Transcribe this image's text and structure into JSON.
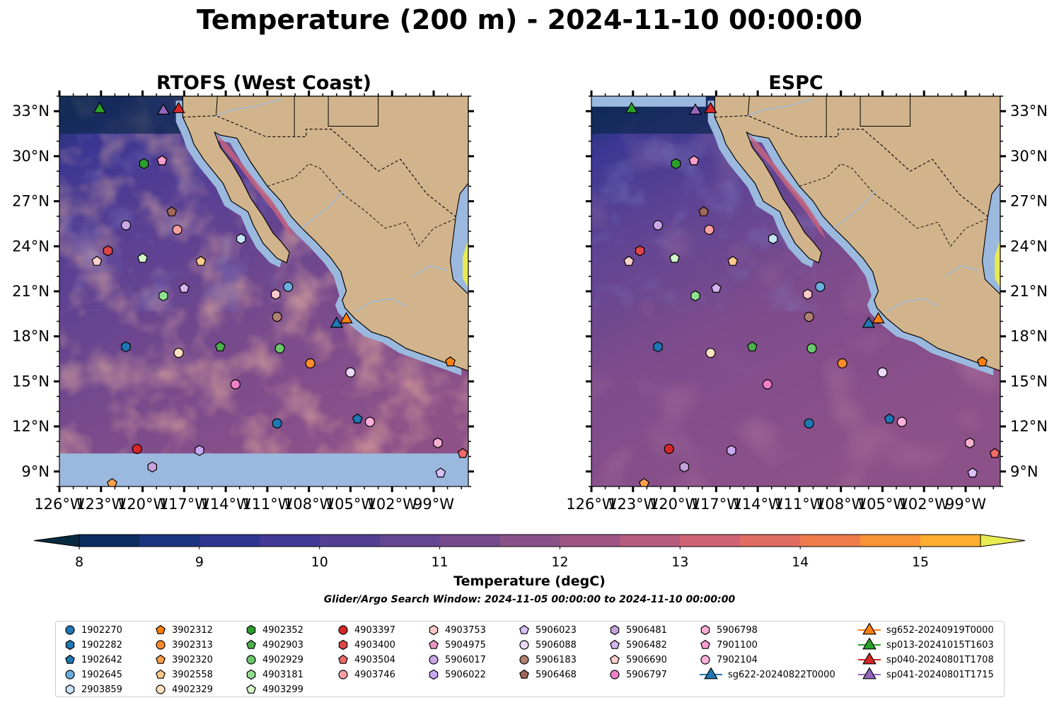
{
  "suptitle": "Temperature (200 m) - 2024-11-10 00:00:00",
  "panels": [
    {
      "title": "RTOFS (West Coast)",
      "model": "rtofs"
    },
    {
      "title": "ESPC",
      "model": "espc"
    }
  ],
  "axes": {
    "lon_range": [
      -126,
      -96.5
    ],
    "lat_range": [
      8,
      34
    ],
    "lon_ticks": [
      "126°W",
      "123°W",
      "120°W",
      "117°W",
      "114°W",
      "111°W",
      "108°W",
      "105°W",
      "102°W",
      "99°W"
    ],
    "lon_tick_values": [
      -126,
      -123,
      -120,
      -117,
      -114,
      -111,
      -108,
      -105,
      -102,
      -99
    ],
    "lat_ticks": [
      "9°N",
      "12°N",
      "15°N",
      "18°N",
      "21°N",
      "24°N",
      "27°N",
      "30°N",
      "33°N"
    ],
    "lat_tick_values": [
      9,
      12,
      15,
      18,
      21,
      24,
      27,
      30,
      33
    ]
  },
  "colorbar": {
    "label": "Temperature (degC)",
    "range": [
      8,
      15.5
    ],
    "tick_labels": [
      "8",
      "9",
      "10",
      "11",
      "12",
      "13",
      "14",
      "15"
    ],
    "tick_values": [
      8,
      9,
      10,
      11,
      12,
      13,
      14,
      15
    ],
    "levels": [
      8,
      8.5,
      9,
      9.5,
      10,
      10.5,
      11,
      11.5,
      12,
      12.5,
      13,
      13.5,
      14,
      14.5,
      15,
      15.5
    ],
    "colors": [
      "#082a40",
      "#0d2c5f",
      "#1b3380",
      "#2e3591",
      "#423895",
      "#523f93",
      "#634591",
      "#744a8d",
      "#8a5189",
      "#a05685",
      "#b75c7f",
      "#cf6375",
      "#e06c62",
      "#ee7c4b",
      "#f99336",
      "#fdae2e",
      "#f9cd3f",
      "#e8ea52"
    ]
  },
  "search_window": "Glider/Argo Search Window: 2024-11-05 00:00:00 to 2024-11-10 00:00:00",
  "chart_data": {
    "type": "scatter",
    "title": "Temperature (200 m) - 2024-11-10 00:00:00",
    "xlabel": "",
    "ylabel": "",
    "xlim": [
      -126,
      -96.5
    ],
    "ylim": [
      8,
      34
    ],
    "field_units": "degC",
    "markers": [
      {
        "id": "1902270",
        "lon": -110.3,
        "lat": 12.2,
        "color": "#1f77b4",
        "shape": "circle"
      },
      {
        "id": "1902282",
        "lon": -121.2,
        "lat": 17.3,
        "color": "#1f77b4",
        "shape": "hexagon"
      },
      {
        "id": "1902642",
        "lon": -104.5,
        "lat": 12.5,
        "color": "#1f77b4",
        "shape": "pentagon"
      },
      {
        "id": "1902645",
        "lon": -109.5,
        "lat": 21.3,
        "color": "#6aaee0",
        "shape": "circle"
      },
      {
        "id": "2903859",
        "lon": -112.9,
        "lat": 24.5,
        "color": "#c6e2f7",
        "shape": "hexagon"
      },
      {
        "id": "3902312",
        "lon": -97.8,
        "lat": 16.3,
        "color": "#ff7f0e",
        "shape": "pentagon"
      },
      {
        "id": "3902313",
        "lon": -107.9,
        "lat": 16.2,
        "color": "#ff8c2a",
        "shape": "circle"
      },
      {
        "id": "3902320",
        "lon": -122.2,
        "lat": 8.2,
        "color": "#ffa04a",
        "shape": "pentagon"
      },
      {
        "id": "3902558",
        "lon": -115.8,
        "lat": 23.0,
        "color": "#ffca8a",
        "shape": "pentagon"
      },
      {
        "id": "4902329",
        "lon": -117.4,
        "lat": 16.9,
        "color": "#ffe1c0",
        "shape": "circle"
      },
      {
        "id": "4902352",
        "lon": -119.9,
        "lat": 29.5,
        "color": "#2ca02c",
        "shape": "hexagon"
      },
      {
        "id": "4902903",
        "lon": -114.4,
        "lat": 17.3,
        "color": "#4cb04c",
        "shape": "pentagon"
      },
      {
        "id": "4902929",
        "lon": -110.1,
        "lat": 17.2,
        "color": "#6cc66c",
        "shape": "circle"
      },
      {
        "id": "4903181",
        "lon": -118.5,
        "lat": 20.7,
        "color": "#90e090",
        "shape": "hexagon"
      },
      {
        "id": "4903299",
        "lon": -120.0,
        "lat": 23.2,
        "color": "#d2f7c8",
        "shape": "pentagon"
      },
      {
        "id": "4903397",
        "lon": -120.4,
        "lat": 10.5,
        "color": "#d62728",
        "shape": "circle"
      },
      {
        "id": "4903400",
        "lon": -122.5,
        "lat": 23.7,
        "color": "#e04546",
        "shape": "hexagon"
      },
      {
        "id": "4903504",
        "lon": -96.9,
        "lat": 10.2,
        "color": "#f06a6a",
        "shape": "pentagon"
      },
      {
        "id": "4903746",
        "lon": -117.5,
        "lat": 25.1,
        "color": "#f7a0a0",
        "shape": "circle"
      },
      {
        "id": "4903753",
        "lon": -110.4,
        "lat": 20.8,
        "color": "#fcc8c8",
        "shape": "hexagon"
      },
      {
        "id": "5904975",
        "lon": -118.6,
        "lat": 29.7,
        "color": "#e895c4",
        "shape": "pentagon"
      },
      {
        "id": "5906017",
        "lon": -121.2,
        "lat": 25.4,
        "color": "#c9a8e6",
        "shape": "circle"
      },
      {
        "id": "5906022",
        "lon": -115.9,
        "lat": 10.4,
        "color": "#c8a8f0",
        "shape": "hexagon"
      },
      {
        "id": "5906023",
        "lon": -98.5,
        "lat": 8.9,
        "color": "#d8c0f8",
        "shape": "pentagon"
      },
      {
        "id": "5906088",
        "lon": -105.0,
        "lat": 15.6,
        "color": "#ecd8fc",
        "shape": "circle"
      },
      {
        "id": "5906183",
        "lon": -110.3,
        "lat": 19.3,
        "color": "#b08070",
        "shape": "circle"
      },
      {
        "id": "5906468",
        "lon": -117.9,
        "lat": 26.3,
        "color": "#a0685a",
        "shape": "pentagon"
      },
      {
        "id": "5906481",
        "lon": -119.3,
        "lat": 9.3,
        "color": "#c6a2dc",
        "shape": "hexagon"
      },
      {
        "id": "5906482",
        "lon": -117.0,
        "lat": 21.2,
        "color": "#d6b4ee",
        "shape": "pentagon"
      },
      {
        "id": "5906690",
        "lon": -123.3,
        "lat": 23.0,
        "color": "#ffd2cc",
        "shape": "pentagon"
      },
      {
        "id": "5906797",
        "lon": -113.3,
        "lat": 14.8,
        "color": "#f080c8",
        "shape": "circle"
      },
      {
        "id": "5906798",
        "lon": -98.7,
        "lat": 10.9,
        "color": "#f8b0d2",
        "shape": "hexagon"
      },
      {
        "id": "7901100",
        "lon": -118.6,
        "lat": 29.7,
        "color": "#ff9ecf",
        "shape": "pentagon"
      },
      {
        "id": "7902104",
        "lon": -103.6,
        "lat": 12.3,
        "color": "#ffb0d8",
        "shape": "circle"
      },
      {
        "id": "sg622-20240822T0000",
        "lon": -106.0,
        "lat": 18.9,
        "color": "#1f77b4",
        "shape": "triangle"
      },
      {
        "id": "sg652-20240919T0000",
        "lon": -105.3,
        "lat": 19.2,
        "color": "#ff7f0e",
        "shape": "triangle"
      },
      {
        "id": "sp013-20241015T1603",
        "lon": -123.1,
        "lat": 33.2,
        "color": "#2ca02c",
        "shape": "triangle"
      },
      {
        "id": "sp040-20240801T1708",
        "lon": -117.4,
        "lat": 33.2,
        "color": "#d62728",
        "shape": "triangle"
      },
      {
        "id": "sp041-20240801T1715",
        "lon": -118.5,
        "lat": 33.1,
        "color": "#9467bd",
        "shape": "triangle"
      }
    ]
  },
  "legend": {
    "columns": [
      [
        "1902270",
        "1902282",
        "1902642",
        "1902645",
        "2903859"
      ],
      [
        "3902312",
        "3902313",
        "3902320",
        "3902558",
        "4902329"
      ],
      [
        "4902352",
        "4902903",
        "4902929",
        "4903181",
        "4903299"
      ],
      [
        "4903397",
        "4903400",
        "4903504",
        "4903746"
      ],
      [
        "4903753",
        "5904975",
        "5906017",
        "5906022"
      ],
      [
        "5906023",
        "5906088",
        "5906183",
        "5906468"
      ],
      [
        "5906481",
        "5906482",
        "5906690",
        "5906797"
      ],
      [
        "5906798",
        "7901100",
        "7902104",
        "sg622-20240822T0000"
      ],
      [
        "sg652-20240919T0000",
        "sp013-20241015T1603",
        "sp040-20240801T1708",
        "sp041-20240801T1715"
      ]
    ]
  }
}
